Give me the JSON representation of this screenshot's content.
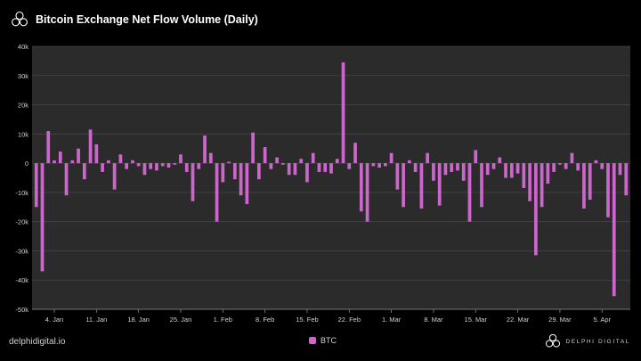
{
  "header": {
    "title": "Bitcoin Exchange Net Flow Volume (Daily)",
    "logo_icon": "delphi-logo-icon"
  },
  "footer": {
    "website": "delphidigital.io",
    "brand_name": "DELPHI DIGITAL",
    "brand_icon": "delphi-logo-icon"
  },
  "colors": {
    "background": "#000000",
    "plot_background": "#2b2b2b",
    "bar": "#cc66cc",
    "grid": "#444444",
    "text": "#d0d0d0"
  },
  "chart_data": {
    "type": "bar",
    "title": "Bitcoin Exchange Net Flow Volume (Daily)",
    "xlabel": "",
    "ylabel": "",
    "ylim": [
      -50000,
      40000
    ],
    "y_ticks": [
      40000,
      30000,
      20000,
      10000,
      0,
      -10000,
      -20000,
      -30000,
      -40000,
      -50000
    ],
    "y_tick_labels": [
      "40k",
      "30k",
      "20k",
      "10k",
      "0",
      "-10k",
      "-20k",
      "-30k",
      "-40k",
      "-50k"
    ],
    "x_ticks": [
      "4. Jan",
      "11. Jan",
      "18. Jan",
      "25. Jan",
      "1. Feb",
      "8. Feb",
      "15. Feb",
      "22. Feb",
      "1. Mar",
      "8. Mar",
      "15. Mar",
      "22. Mar",
      "29. Mar",
      "5. Apr"
    ],
    "x_tick_dates": [
      "2021-01-04",
      "2021-01-11",
      "2021-01-18",
      "2021-01-25",
      "2021-02-01",
      "2021-02-08",
      "2021-02-15",
      "2021-02-22",
      "2021-03-01",
      "2021-03-08",
      "2021-03-15",
      "2021-03-22",
      "2021-03-29",
      "2021-04-05"
    ],
    "grid": true,
    "legend_position": "bottom-center",
    "series": [
      {
        "name": "BTC",
        "color": "#cc66cc",
        "points": [
          [
            "2021-01-01",
            -15000
          ],
          [
            "2021-01-02",
            -37000
          ],
          [
            "2021-01-03",
            11000
          ],
          [
            "2021-01-04",
            1000
          ],
          [
            "2021-01-05",
            4000
          ],
          [
            "2021-01-06",
            -11000
          ],
          [
            "2021-01-07",
            1000
          ],
          [
            "2021-01-08",
            5000
          ],
          [
            "2021-01-09",
            -5500
          ],
          [
            "2021-01-10",
            11500
          ],
          [
            "2021-01-11",
            6500
          ],
          [
            "2021-01-12",
            -3000
          ],
          [
            "2021-01-13",
            1000
          ],
          [
            "2021-01-14",
            -9000
          ],
          [
            "2021-01-15",
            3000
          ],
          [
            "2021-01-16",
            -2000
          ],
          [
            "2021-01-17",
            1000
          ],
          [
            "2021-01-18",
            -1000
          ],
          [
            "2021-01-19",
            -4000
          ],
          [
            "2021-01-20",
            -2000
          ],
          [
            "2021-01-21",
            -2500
          ],
          [
            "2021-01-22",
            -1000
          ],
          [
            "2021-01-23",
            -1500
          ],
          [
            "2021-01-24",
            -500
          ],
          [
            "2021-01-25",
            3000
          ],
          [
            "2021-01-26",
            -3000
          ],
          [
            "2021-01-27",
            -13000
          ],
          [
            "2021-01-28",
            -2000
          ],
          [
            "2021-01-29",
            9500
          ],
          [
            "2021-01-30",
            3500
          ],
          [
            "2021-01-31",
            -20000
          ],
          [
            "2021-02-01",
            -6500
          ],
          [
            "2021-02-02",
            500
          ],
          [
            "2021-02-03",
            -5500
          ],
          [
            "2021-02-04",
            -11000
          ],
          [
            "2021-02-05",
            -14000
          ],
          [
            "2021-02-06",
            10500
          ],
          [
            "2021-02-07",
            -5500
          ],
          [
            "2021-02-08",
            5500
          ],
          [
            "2021-02-09",
            -2000
          ],
          [
            "2021-02-10",
            2000
          ],
          [
            "2021-02-11",
            -500
          ],
          [
            "2021-02-12",
            -4000
          ],
          [
            "2021-02-13",
            -4000
          ],
          [
            "2021-02-14",
            1500
          ],
          [
            "2021-02-15",
            -6500
          ],
          [
            "2021-02-16",
            3500
          ],
          [
            "2021-02-17",
            -3000
          ],
          [
            "2021-02-18",
            -3000
          ],
          [
            "2021-02-19",
            -3500
          ],
          [
            "2021-02-20",
            1500
          ],
          [
            "2021-02-21",
            34500
          ],
          [
            "2021-02-22",
            -2000
          ],
          [
            "2021-02-23",
            7000
          ],
          [
            "2021-02-24",
            -16500
          ],
          [
            "2021-02-25",
            -20000
          ],
          [
            "2021-02-26",
            -1000
          ],
          [
            "2021-02-27",
            -1500
          ],
          [
            "2021-02-28",
            -1000
          ],
          [
            "2021-03-01",
            3500
          ],
          [
            "2021-03-02",
            -9000
          ],
          [
            "2021-03-03",
            -15000
          ],
          [
            "2021-03-04",
            1000
          ],
          [
            "2021-03-05",
            -3000
          ],
          [
            "2021-03-06",
            -15500
          ],
          [
            "2021-03-07",
            3500
          ],
          [
            "2021-03-08",
            -6000
          ],
          [
            "2021-03-09",
            -14500
          ],
          [
            "2021-03-10",
            -4000
          ],
          [
            "2021-03-11",
            -3000
          ],
          [
            "2021-03-12",
            -2500
          ],
          [
            "2021-03-13",
            -6000
          ],
          [
            "2021-03-14",
            -20000
          ],
          [
            "2021-03-15",
            4500
          ],
          [
            "2021-03-16",
            -15000
          ],
          [
            "2021-03-17",
            -4000
          ],
          [
            "2021-03-18",
            -2000
          ],
          [
            "2021-03-19",
            2000
          ],
          [
            "2021-03-20",
            -5000
          ],
          [
            "2021-03-21",
            -5000
          ],
          [
            "2021-03-22",
            -3500
          ],
          [
            "2021-03-23",
            -8500
          ],
          [
            "2021-03-24",
            -13000
          ],
          [
            "2021-03-25",
            -31500
          ],
          [
            "2021-03-26",
            -15000
          ],
          [
            "2021-03-27",
            -7000
          ],
          [
            "2021-03-28",
            -3000
          ],
          [
            "2021-03-29",
            -500
          ],
          [
            "2021-03-30",
            -2000
          ],
          [
            "2021-03-31",
            3500
          ],
          [
            "2021-04-01",
            -2500
          ],
          [
            "2021-04-02",
            -15500
          ],
          [
            "2021-04-03",
            -12500
          ],
          [
            "2021-04-04",
            1000
          ],
          [
            "2021-04-05",
            -2000
          ],
          [
            "2021-04-06",
            -18500
          ],
          [
            "2021-04-07",
            -45500
          ],
          [
            "2021-04-08",
            -4000
          ],
          [
            "2021-04-09",
            -11000
          ]
        ]
      }
    ]
  }
}
